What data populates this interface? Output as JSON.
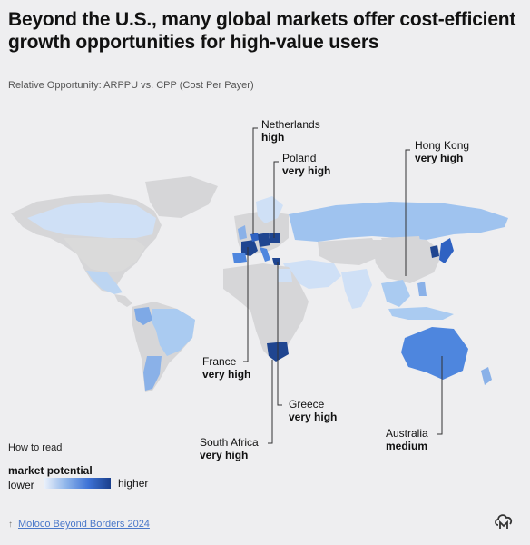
{
  "title": "Beyond the U.S., many global markets offer cost-efficient growth opportunities for high-value users",
  "subtitle": "Relative Opportunity: ARPPU vs. CPP (Cost Per Payer)",
  "colors": {
    "background": "#eeeef0",
    "land_no_data": "#d6d6d8",
    "lower": "#d8e7f8",
    "low_mid": "#a9c9f0",
    "medium": "#4e86de",
    "high": "#2f62c2",
    "very_high": "#1f4590",
    "leader_line": "#333333"
  },
  "annotations": [
    {
      "country": "Netherlands",
      "level": "high"
    },
    {
      "country": "Poland",
      "level": "very high"
    },
    {
      "country": "Hong Kong",
      "level": "very high"
    },
    {
      "country": "France",
      "level": "very high"
    },
    {
      "country": "Greece",
      "level": "very high"
    },
    {
      "country": "South Africa",
      "level": "very high"
    },
    {
      "country": "Australia",
      "level": "medium"
    }
  ],
  "legend": {
    "how_to_read": "How to read",
    "title": "market potential",
    "lower": "lower",
    "higher": "higher"
  },
  "source": {
    "label": "Moloco Beyond Borders 2024",
    "icon": "arrow-up-icon"
  },
  "logo_icon": "cloud-m-logo-icon"
}
